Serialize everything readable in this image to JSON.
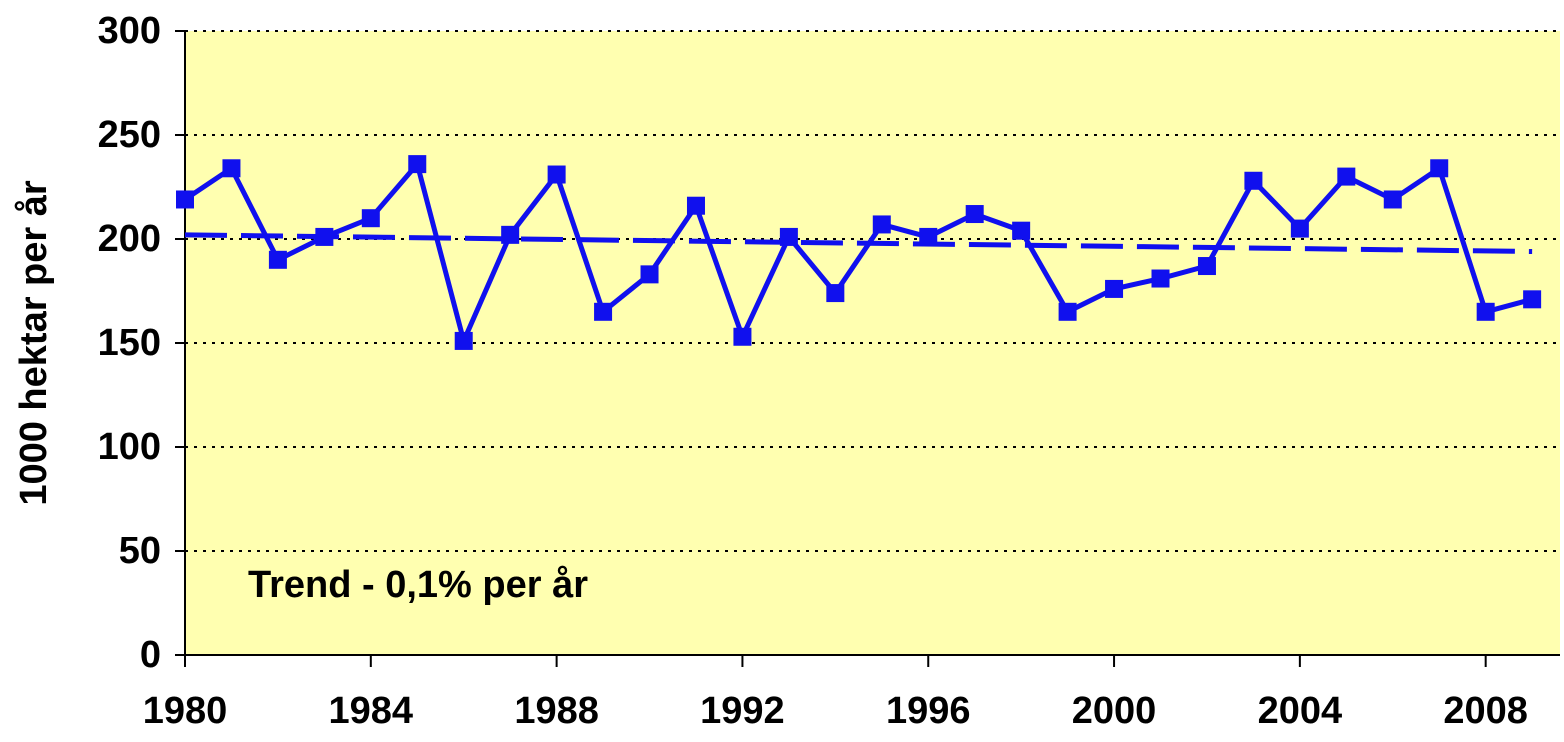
{
  "chart_data": {
    "type": "line",
    "y_label": "1000 hektar per år",
    "annotation": "Trend - 0,1% per år",
    "x": [
      1980,
      1981,
      1982,
      1983,
      1984,
      1985,
      1986,
      1987,
      1988,
      1989,
      1990,
      1991,
      1992,
      1993,
      1994,
      1995,
      1996,
      1997,
      1998,
      1999,
      2000,
      2001,
      2002,
      2003,
      2004,
      2005,
      2006,
      2007,
      2008,
      2009
    ],
    "series": [
      {
        "color": "#1010ee",
        "values": [
          219,
          234,
          190,
          201,
          210,
          236,
          151,
          202,
          231,
          165,
          183,
          216,
          153,
          201,
          174,
          207,
          201,
          212,
          204,
          165,
          176,
          181,
          187,
          228,
          205,
          230,
          219,
          234,
          165,
          171
        ]
      }
    ],
    "trend": {
      "x": [
        1980,
        2009
      ],
      "values": [
        202,
        194
      ],
      "color": "#1010ee"
    },
    "xlim": [
      1980,
      2009.6
    ],
    "xticks": [
      1980,
      1984,
      1988,
      1992,
      1996,
      2000,
      2004,
      2008
    ],
    "ylim": [
      0,
      300
    ],
    "yticks": [
      0,
      50,
      100,
      150,
      200,
      250,
      300
    ],
    "grid": true,
    "background": "#ffffb0"
  }
}
